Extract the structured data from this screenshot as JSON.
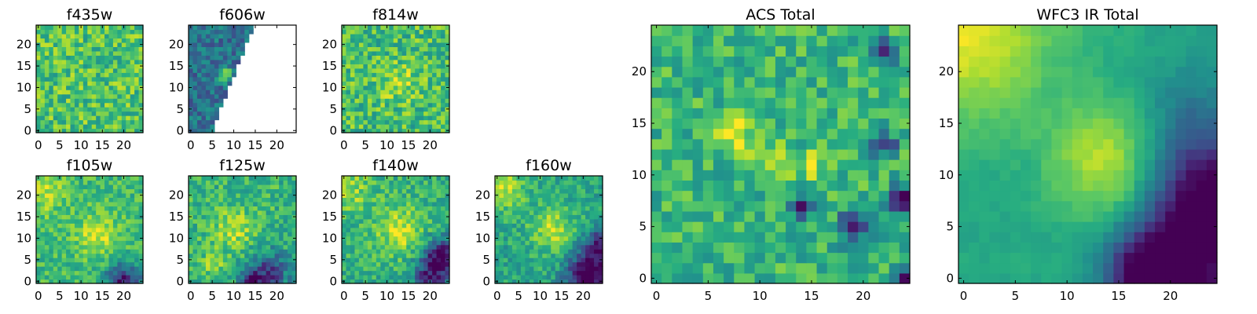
{
  "chart_data": [
    {
      "type": "heatmap",
      "title": "f435w",
      "xlim": [
        -0.5,
        24.5
      ],
      "ylim": [
        -0.5,
        24.5
      ],
      "xticks": [
        0,
        5,
        10,
        15,
        20
      ],
      "yticks": [
        0,
        5,
        10,
        15,
        20
      ],
      "grid": false,
      "colormap": "viridis",
      "grid_size": 25,
      "pattern": {
        "base": 0.72,
        "noise": 0.2,
        "seed": 11
      }
    },
    {
      "type": "heatmap",
      "title": "f606w",
      "xlim": [
        -0.5,
        24.5
      ],
      "ylim": [
        -0.5,
        24.5
      ],
      "xticks": [
        0,
        5,
        10,
        15,
        20
      ],
      "yticks": [
        0,
        5,
        10,
        15,
        20
      ],
      "grid": false,
      "colormap": "viridis",
      "grid_size": 25,
      "pattern": {
        "base": 0.38,
        "noise": 0.16,
        "seed": 23,
        "mask_diagonal": true,
        "hot": [
          {
            "x": 8,
            "y": 13,
            "amp": 0.5,
            "r": 1.2
          }
        ]
      }
    },
    {
      "type": "heatmap",
      "title": "f814w",
      "xlim": [
        -0.5,
        24.5
      ],
      "ylim": [
        -0.5,
        24.5
      ],
      "xticks": [
        0,
        5,
        10,
        15,
        20
      ],
      "yticks": [
        0,
        5,
        10,
        15,
        20
      ],
      "grid": false,
      "colormap": "viridis",
      "grid_size": 25,
      "pattern": {
        "base": 0.7,
        "noise": 0.2,
        "seed": 37,
        "hot": [
          {
            "x": 13,
            "y": 11,
            "amp": 0.18,
            "r": 3
          }
        ]
      }
    },
    {
      "type": "heatmap",
      "title": "f105w",
      "xlim": [
        -0.5,
        24.5
      ],
      "ylim": [
        -0.5,
        24.5
      ],
      "xticks": [
        0,
        5,
        10,
        15,
        20
      ],
      "yticks": [
        0,
        5,
        10,
        15,
        20
      ],
      "grid": false,
      "colormap": "viridis",
      "grid_size": 25,
      "pattern": {
        "base": 0.68,
        "noise": 0.14,
        "seed": 41,
        "hot": [
          {
            "x": 14,
            "y": 11,
            "amp": 0.25,
            "r": 3.5
          },
          {
            "x": 1,
            "y": 21,
            "amp": 0.2,
            "r": 4
          }
        ],
        "cold": [
          {
            "x": 20,
            "y": 0,
            "amp": 0.6,
            "r": 3
          }
        ]
      }
    },
    {
      "type": "heatmap",
      "title": "f125w",
      "xlim": [
        -0.5,
        24.5
      ],
      "ylim": [
        -0.5,
        24.5
      ],
      "xticks": [
        0,
        5,
        10,
        15,
        20
      ],
      "yticks": [
        0,
        5,
        10,
        15,
        20
      ],
      "grid": false,
      "colormap": "viridis",
      "grid_size": 25,
      "pattern": {
        "base": 0.66,
        "noise": 0.16,
        "seed": 53,
        "hot": [
          {
            "x": 10,
            "y": 12,
            "amp": 0.22,
            "r": 3.5
          },
          {
            "x": 5,
            "y": 4,
            "amp": 0.25,
            "r": 1.5
          }
        ],
        "cold": [
          {
            "x": 18,
            "y": 2,
            "amp": 0.5,
            "r": 3.5
          },
          {
            "x": 14,
            "y": 0,
            "amp": 0.5,
            "r": 1.5
          }
        ]
      }
    },
    {
      "type": "heatmap",
      "title": "f140w",
      "xlim": [
        -0.5,
        24.5
      ],
      "ylim": [
        -0.5,
        24.5
      ],
      "xticks": [
        0,
        5,
        10,
        15,
        20
      ],
      "yticks": [
        0,
        5,
        10,
        15,
        20
      ],
      "grid": false,
      "colormap": "viridis",
      "grid_size": 25,
      "pattern": {
        "base": 0.64,
        "noise": 0.15,
        "seed": 67,
        "hot": [
          {
            "x": 13,
            "y": 12,
            "amp": 0.28,
            "r": 4
          },
          {
            "x": 1,
            "y": 21,
            "amp": 0.2,
            "r": 4
          }
        ],
        "cold": [
          {
            "x": 23,
            "y": 6,
            "amp": 0.6,
            "r": 3
          },
          {
            "x": 20,
            "y": 1,
            "amp": 0.45,
            "r": 3
          }
        ]
      }
    },
    {
      "type": "heatmap",
      "title": "f160w",
      "xlim": [
        -0.5,
        24.5
      ],
      "ylim": [
        -0.5,
        24.5
      ],
      "xticks": [
        0,
        5,
        10,
        15,
        20
      ],
      "yticks": [
        0,
        5,
        10,
        15,
        20
      ],
      "grid": false,
      "colormap": "viridis",
      "grid_size": 25,
      "pattern": {
        "base": 0.6,
        "noise": 0.14,
        "seed": 79,
        "hot": [
          {
            "x": 13,
            "y": 12,
            "amp": 0.3,
            "r": 3.5
          },
          {
            "x": 1,
            "y": 22,
            "amp": 0.3,
            "r": 4
          }
        ],
        "cold": [
          {
            "x": 21,
            "y": 1,
            "amp": 0.7,
            "r": 3.5
          },
          {
            "x": 24,
            "y": 8,
            "amp": 0.5,
            "r": 3
          }
        ]
      }
    },
    {
      "type": "heatmap",
      "title": "ACS Total",
      "xlim": [
        -0.5,
        24.5
      ],
      "ylim": [
        -0.5,
        24.5
      ],
      "xticks": [
        0,
        5,
        10,
        15,
        20
      ],
      "yticks": [
        0,
        5,
        10,
        15,
        20
      ],
      "grid": false,
      "colormap": "viridis",
      "grid_size": 25,
      "pattern": {
        "base": 0.66,
        "noise": 0.16,
        "seed": 91,
        "hot": [
          {
            "x": 7.5,
            "y": 14,
            "amp": 0.35,
            "r": 1.2
          },
          {
            "x": 11,
            "y": 11.5,
            "amp": 0.3,
            "r": 1.2
          },
          {
            "x": 15,
            "y": 11,
            "amp": 0.28,
            "r": 1
          }
        ],
        "cold": [
          {
            "x": 19,
            "y": 5,
            "amp": 0.65,
            "r": 1
          },
          {
            "x": 24,
            "y": 7.5,
            "amp": 0.7,
            "r": 1
          },
          {
            "x": 14,
            "y": 7,
            "amp": 0.6,
            "r": 0.8
          },
          {
            "x": 22,
            "y": 13,
            "amp": 0.6,
            "r": 0.8
          },
          {
            "x": 22,
            "y": 22,
            "amp": 0.6,
            "r": 0.8
          },
          {
            "x": 24,
            "y": 0,
            "amp": 0.7,
            "r": 0.8
          }
        ]
      }
    },
    {
      "type": "heatmap",
      "title": "WFC3 IR Total",
      "xlim": [
        -0.5,
        24.5
      ],
      "ylim": [
        -0.5,
        24.5
      ],
      "xticks": [
        0,
        5,
        10,
        15,
        20
      ],
      "yticks": [
        0,
        5,
        10,
        15,
        20
      ],
      "grid": false,
      "colormap": "viridis",
      "grid_size": 25,
      "pattern": {
        "base": 0.6,
        "noise": 0.06,
        "seed": 103,
        "smooth": true,
        "hot": [
          {
            "x": 14,
            "y": 11.5,
            "amp": 0.32,
            "r": 4
          },
          {
            "x": 0,
            "y": 24,
            "amp": 0.38,
            "r": 6
          }
        ],
        "cold": [
          {
            "x": 18,
            "y": 0,
            "amp": 0.62,
            "r": 3
          },
          {
            "x": 24,
            "y": 8,
            "amp": 0.55,
            "r": 4
          },
          {
            "x": 22,
            "y": 2,
            "amp": 0.45,
            "r": 4
          },
          {
            "x": 22,
            "y": 15,
            "amp": 0.2,
            "r": 4
          }
        ]
      }
    }
  ]
}
